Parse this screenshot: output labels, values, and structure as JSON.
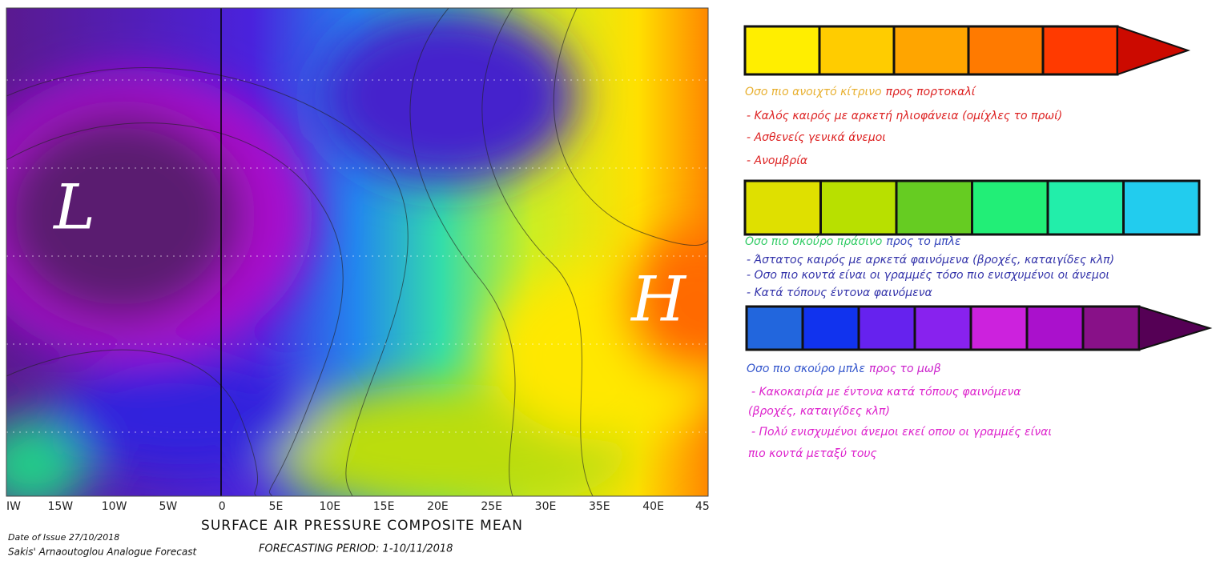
{
  "map": {
    "markers": [
      "L",
      "H"
    ],
    "x_axis_labels": [
      "IW",
      "15W",
      "10W",
      "5W",
      "0",
      "5E",
      "10E",
      "15E",
      "20E",
      "25E",
      "30E",
      "35E",
      "40E",
      "45"
    ],
    "title": "SURFACE AIR PRESSURE COMPOSITE MEAN",
    "issue_date": "Date of Issue 27/10/2018",
    "author": "Sakis' Arnaoutoglou Analogue Forecast",
    "period": "FORECASTING PERIOD: 1-10/11/2018"
  },
  "legend": [
    {
      "colors": [
        "#ffee00",
        "#ffcc00",
        "#ffa500",
        "#ff7a00",
        "#ff3a00"
      ],
      "arrow_color": "#cc0a00",
      "heading": [
        {
          "text": "Οσο πιο ανοιχτό κίτρινο",
          "color": "#e8b030"
        },
        {
          "text": "προς πορτοκαλί",
          "color": "#dd2222"
        }
      ],
      "item_color": "#dd2222",
      "items": [
        "- Καλός καιρός με αρκετή ηλιοφάνεια (ομίχλες το πρωί)",
        "- Ασθενείς γενικά άνεμοι",
        "- Ανομβρία"
      ]
    },
    {
      "colors": [
        "#dfe000",
        "#b8e000",
        "#66cc22",
        "#22ee77",
        "#22eeaa",
        "#22ccee"
      ],
      "arrow_color": null,
      "heading": [
        {
          "text": "Οσο πιο σκούρο πράσινο",
          "color": "#33cc66"
        },
        {
          "text": "προς το μπλε",
          "color": "#3344bb"
        }
      ],
      "item_color": "#3333aa",
      "items": [
        "- Άστατος καιρός με αρκετά φαινόμενα (βροχές, καταιγίδες κλπ)",
        "- Οσο πιο κοντά είναι οι γραμμές τόσο πιο ενισχυμένοι οι άνεμοι",
        "- Κατά τόπους έντονα φαινόμενα"
      ]
    },
    {
      "colors": [
        "#2266dd",
        "#1133ee",
        "#6622ee",
        "#8822ee",
        "#cc22dd",
        "#aa11cc",
        "#881188"
      ],
      "arrow_color": "#550055",
      "heading": [
        {
          "text": "Οσο πιο σκούρο μπλε",
          "color": "#3355cc"
        },
        {
          "text": "προς το μωβ",
          "color": "#cc22cc"
        }
      ],
      "item_color": "#dd22cc",
      "items": [
        "- Κακοκαιρία με έντονα κατά τόπους φαινόμενα",
        "(βροχές, καταιγίδες κλπ)",
        "- Πολύ ενισχυμένοι άνεμοι εκεί οπου οι γραμμές είναι",
        "πιο κοντά μεταξύ τους"
      ]
    }
  ]
}
